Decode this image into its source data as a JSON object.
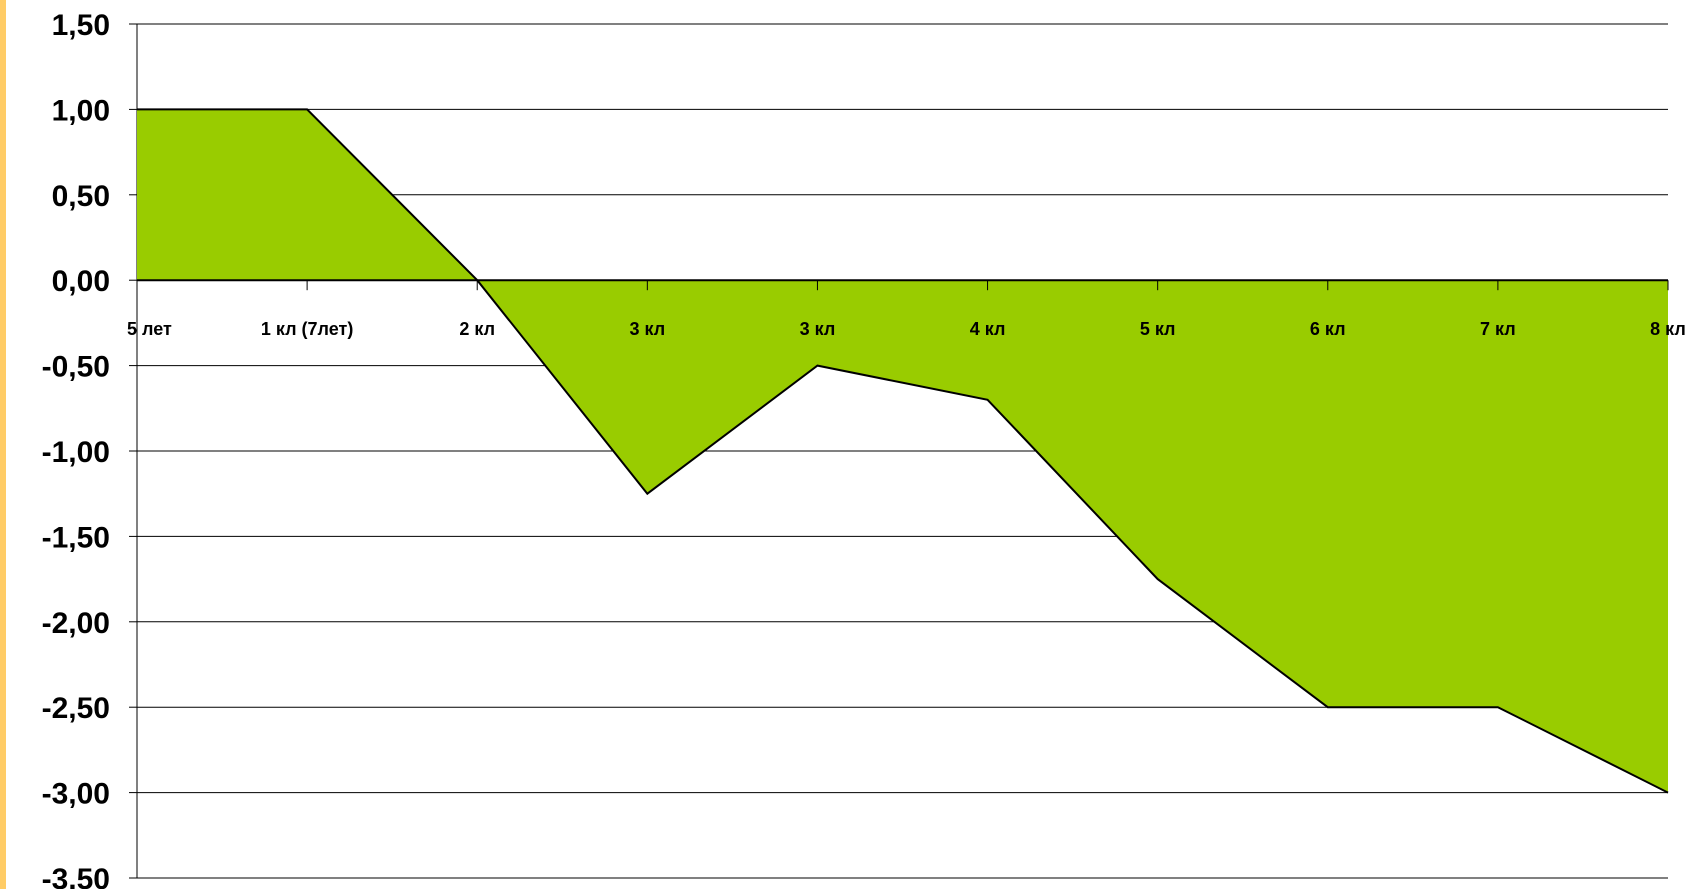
{
  "colors": {
    "fill": "#99cc00",
    "line": "#000000",
    "grid": "#000000",
    "stripe": "#ffcc66",
    "background": "#ffffff"
  },
  "chart_data": {
    "type": "area",
    "title": "",
    "xlabel": "",
    "ylabel": "",
    "categories": [
      "5 лет",
      "1 кл (7лет)",
      "2 кл",
      "3 кл",
      "3 кл",
      "4 кл",
      "5 кл",
      "6 кл",
      "7 кл",
      "8 кл"
    ],
    "values": [
      1.0,
      1.0,
      0.0,
      -1.25,
      -0.5,
      -0.7,
      -1.75,
      -2.5,
      -2.5,
      -3.0
    ],
    "ylim": [
      -3.5,
      1.5
    ],
    "yticks": [
      1.5,
      1.0,
      0.5,
      0.0,
      -0.5,
      -1.0,
      -1.5,
      -2.0,
      -2.5,
      -3.0,
      -3.5
    ],
    "ytick_labels": [
      "1,50",
      "1,00",
      "0,50",
      "0,00",
      "-0,50",
      "-1,00",
      "-1,50",
      "-2,00",
      "-2,50",
      "-3,00",
      "-3,50"
    ],
    "grid": true,
    "legend": "none"
  }
}
